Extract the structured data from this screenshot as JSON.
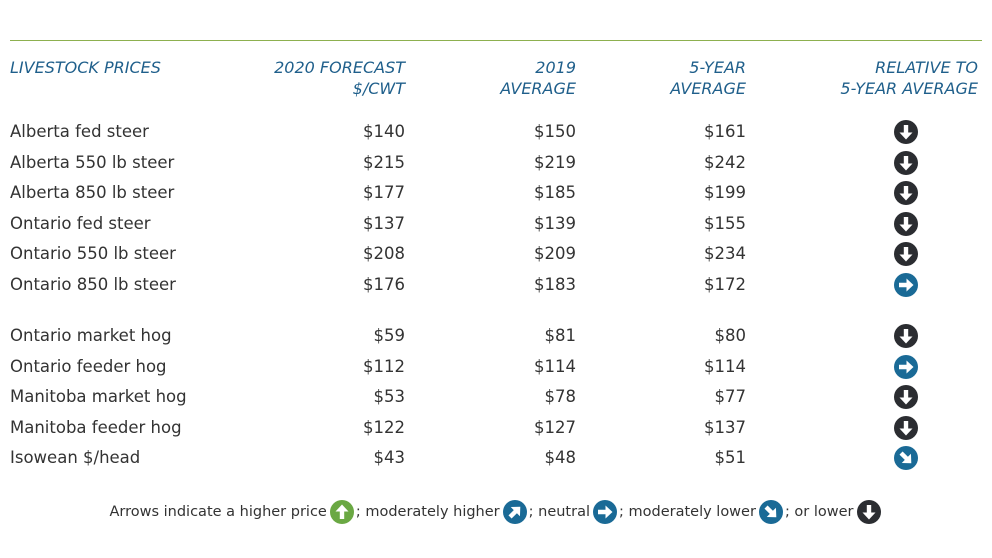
{
  "table": {
    "header": [
      [
        "LIVESTOCK PRICES"
      ],
      [
        "2020 FORECAST",
        "$/CWT"
      ],
      [
        "2019",
        "AVERAGE"
      ],
      [
        "5-YEAR",
        "AVERAGE"
      ],
      [
        "RELATIVE TO",
        "5-YEAR AVERAGE"
      ]
    ],
    "groups": [
      [
        {
          "name": "Alberta fed steer",
          "values": [
            "$140",
            "$150",
            "$161"
          ],
          "trend": "lower"
        },
        {
          "name": "Alberta 550 lb steer",
          "values": [
            "$215",
            "$219",
            "$242"
          ],
          "trend": "lower"
        },
        {
          "name": "Alberta 850 lb steer",
          "values": [
            "$177",
            "$185",
            "$199"
          ],
          "trend": "lower"
        },
        {
          "name": "Ontario fed steer",
          "values": [
            "$137",
            "$139",
            "$155"
          ],
          "trend": "lower"
        },
        {
          "name": "Ontario 550 lb steer",
          "values": [
            "$208",
            "$209",
            "$234"
          ],
          "trend": "lower"
        },
        {
          "name": "Ontario 850 lb steer",
          "values": [
            "$176",
            "$183",
            "$172"
          ],
          "trend": "neutral"
        }
      ],
      [
        {
          "name": "Ontario market hog",
          "values": [
            "$59",
            "$81",
            "$80"
          ],
          "trend": "lower"
        },
        {
          "name": "Ontario feeder hog",
          "values": [
            "$112",
            "$114",
            "$114"
          ],
          "trend": "neutral"
        },
        {
          "name": "Manitoba market hog",
          "values": [
            "$53",
            "$78",
            "$77"
          ],
          "trend": "lower"
        },
        {
          "name": "Manitoba feeder hog",
          "values": [
            "$122",
            "$127",
            "$137"
          ],
          "trend": "lower"
        },
        {
          "name": "Isowean $/head",
          "values": [
            "$43",
            "$48",
            "$51"
          ],
          "trend": "moderately-lower"
        }
      ]
    ]
  },
  "legend": [
    {
      "text": "Arrows indicate a higher price",
      "icon": "higher"
    },
    {
      "text": "; moderately higher",
      "icon": "moderately-higher"
    },
    {
      "text": "; neutral",
      "icon": "neutral"
    },
    {
      "text": "; moderately lower",
      "icon": "moderately-lower"
    },
    {
      "text": "; or lower",
      "icon": "lower"
    }
  ]
}
